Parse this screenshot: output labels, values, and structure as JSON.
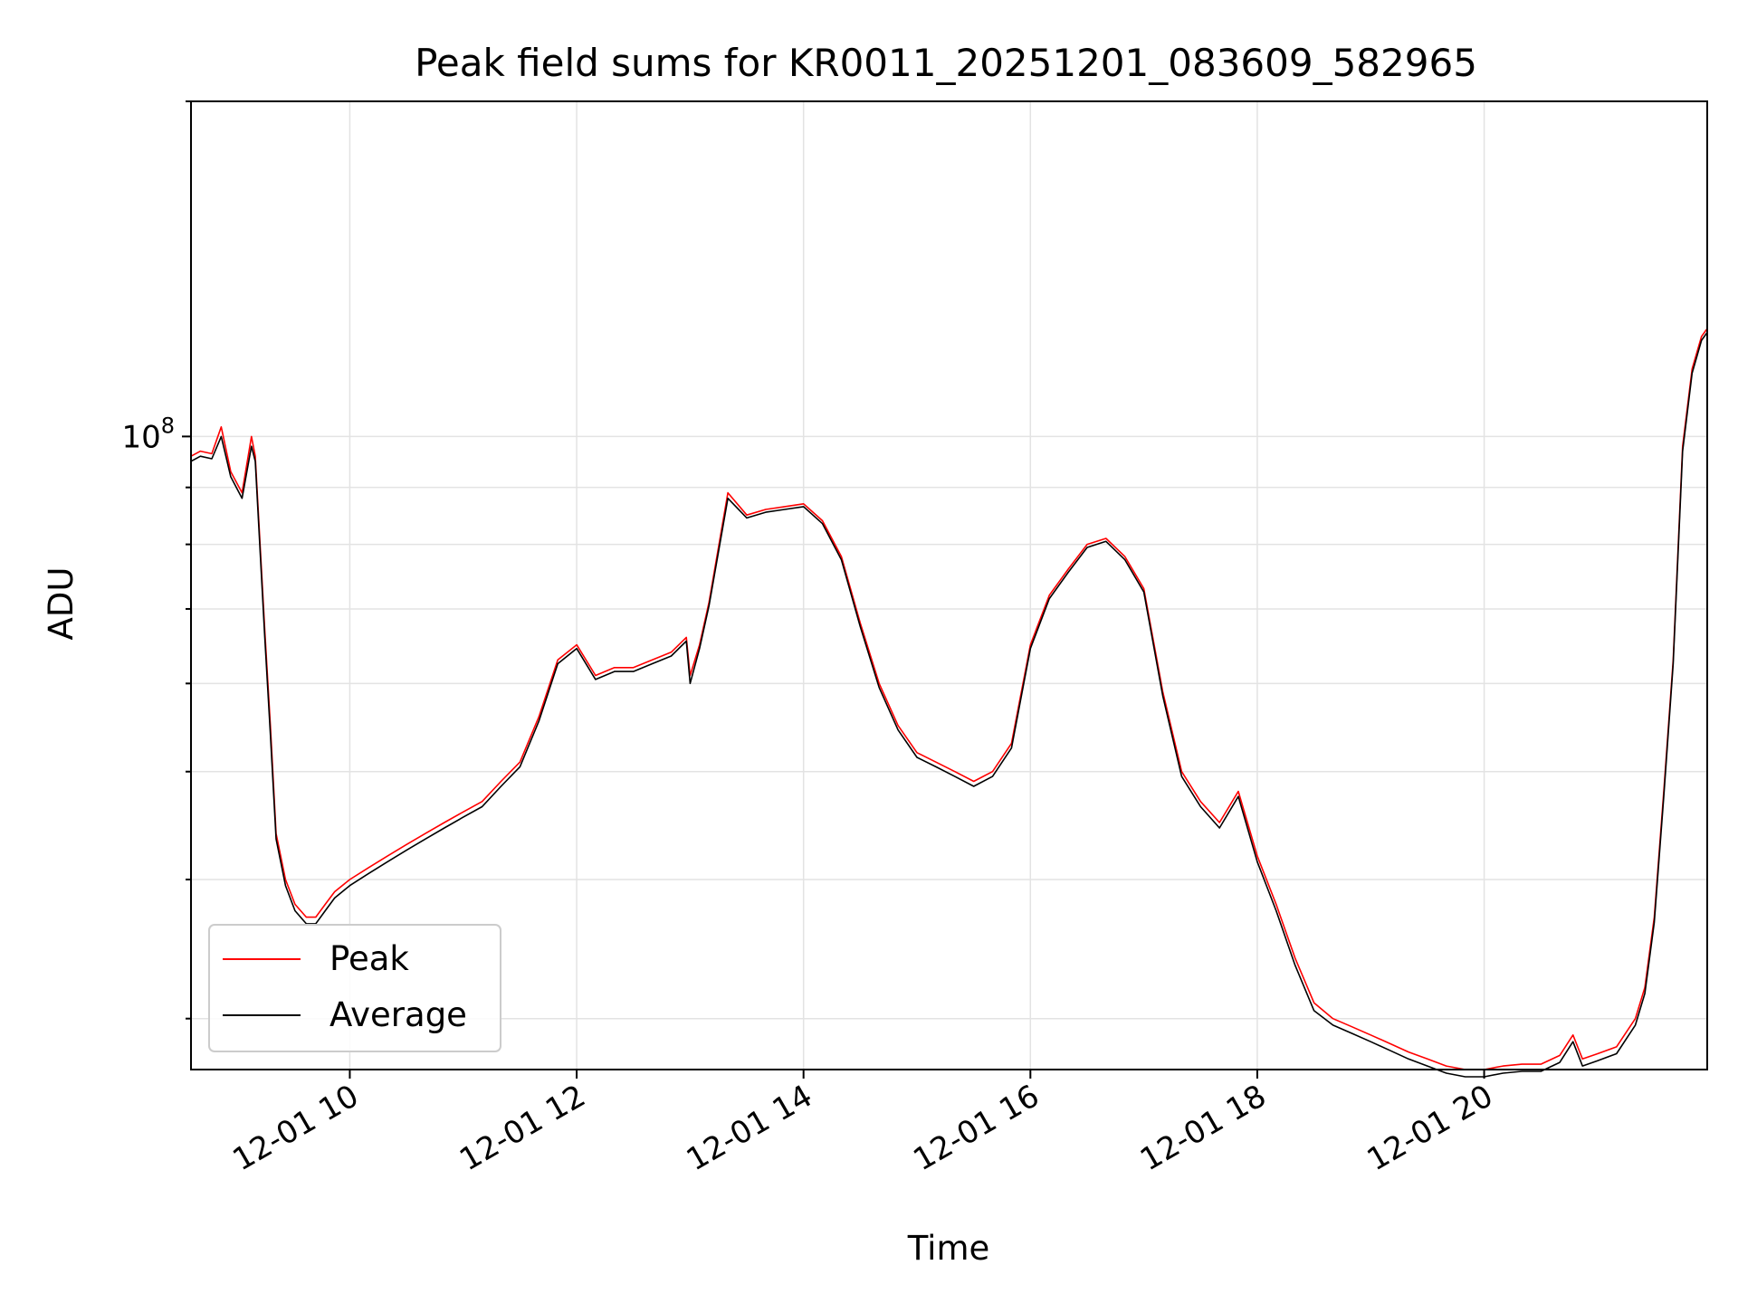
{
  "chart_data": {
    "type": "line",
    "title": "Peak field sums for KR0011_20251201_083609_582965",
    "xlabel": "Time",
    "ylabel": "ADU",
    "yscale": "log",
    "grid": true,
    "legend_position": "lower-left",
    "x_ticks": [
      "12-01 10",
      "12-01 12",
      "12-01 14",
      "12-01 16",
      "12-01 18",
      "12-01 20"
    ],
    "y_tick_labels": [
      {
        "base": "10",
        "exp": "8",
        "value": 100000000
      }
    ],
    "xlim": [
      "2025-12-01 08:36",
      "2025-12-01 21:58"
    ],
    "ylim": [
      27000000,
      200000000
    ],
    "series": [
      {
        "name": "Peak",
        "color": "#ff0000",
        "x": [
          "08:36",
          "08:41",
          "08:47",
          "08:52",
          "08:57",
          "09:03",
          "09:08",
          "09:10",
          "09:15",
          "09:18",
          "09:21",
          "09:26",
          "09:31",
          "09:37",
          "09:42",
          "09:47",
          "09:52",
          "10:00",
          "10:10",
          "10:20",
          "10:30",
          "10:40",
          "10:50",
          "11:00",
          "11:10",
          "11:20",
          "11:30",
          "11:40",
          "11:50",
          "12:00",
          "12:10",
          "12:20",
          "12:30",
          "12:40",
          "12:50",
          "12:58",
          "13:00",
          "13:05",
          "13:10",
          "13:20",
          "13:30",
          "13:40",
          "13:50",
          "14:00",
          "14:10",
          "14:20",
          "14:30",
          "14:40",
          "14:50",
          "15:00",
          "15:10",
          "15:20",
          "15:30",
          "15:40",
          "15:50",
          "16:00",
          "16:10",
          "16:20",
          "16:30",
          "16:40",
          "16:50",
          "17:00",
          "17:10",
          "17:20",
          "17:30",
          "17:40",
          "17:50",
          "18:00",
          "18:10",
          "18:20",
          "18:30",
          "18:40",
          "18:50",
          "19:00",
          "19:10",
          "19:20",
          "19:30",
          "19:40",
          "19:50",
          "20:00",
          "20:10",
          "20:20",
          "20:30",
          "20:40",
          "20:47",
          "20:52",
          "21:00",
          "21:10",
          "21:20",
          "21:25",
          "21:30",
          "21:35",
          "21:40",
          "21:45",
          "21:50",
          "21:55",
          "21:58"
        ],
        "y": [
          96000000,
          97000000,
          96500000,
          102000000,
          93000000,
          89000000,
          100000000,
          96000000,
          67000000,
          55000000,
          44000000,
          40000000,
          38000000,
          37000000,
          37000000,
          38000000,
          39000000,
          40000000,
          41000000,
          42000000,
          43000000,
          44000000,
          45000000,
          46000000,
          47000000,
          49000000,
          51000000,
          56000000,
          63000000,
          65000000,
          61000000,
          62000000,
          62000000,
          63000000,
          64000000,
          66000000,
          61000000,
          65000000,
          71000000,
          89000000,
          85000000,
          86000000,
          86500000,
          87000000,
          84000000,
          78000000,
          68000000,
          60000000,
          55000000,
          52000000,
          51000000,
          50000000,
          49000000,
          50000000,
          53000000,
          65000000,
          72000000,
          76000000,
          80000000,
          81000000,
          78000000,
          73000000,
          59000000,
          50000000,
          47000000,
          45000000,
          48000000,
          42000000,
          38000000,
          34000000,
          31000000,
          30000000,
          29500000,
          29000000,
          28500000,
          28000000,
          27600000,
          27200000,
          27000000,
          27000000,
          27200000,
          27300000,
          27300000,
          27800000,
          29000000,
          27600000,
          27900000,
          28300000,
          30000000,
          32000000,
          37000000,
          48000000,
          63000000,
          98000000,
          115000000,
          123000000,
          125000000
        ]
      },
      {
        "name": "Average",
        "color": "#000000",
        "x": [
          "08:36",
          "08:41",
          "08:47",
          "08:52",
          "08:57",
          "09:03",
          "09:08",
          "09:10",
          "09:15",
          "09:18",
          "09:21",
          "09:26",
          "09:31",
          "09:37",
          "09:42",
          "09:47",
          "09:52",
          "10:00",
          "10:10",
          "10:20",
          "10:30",
          "10:40",
          "10:50",
          "11:00",
          "11:10",
          "11:20",
          "11:30",
          "11:40",
          "11:50",
          "12:00",
          "12:10",
          "12:20",
          "12:30",
          "12:40",
          "12:50",
          "12:58",
          "13:00",
          "13:05",
          "13:10",
          "13:20",
          "13:30",
          "13:40",
          "13:50",
          "14:00",
          "14:10",
          "14:20",
          "14:30",
          "14:40",
          "14:50",
          "15:00",
          "15:10",
          "15:20",
          "15:30",
          "15:40",
          "15:50",
          "16:00",
          "16:10",
          "16:20",
          "16:30",
          "16:40",
          "16:50",
          "17:00",
          "17:10",
          "17:20",
          "17:30",
          "17:40",
          "17:50",
          "18:00",
          "18:10",
          "18:20",
          "18:30",
          "18:40",
          "18:50",
          "19:00",
          "19:10",
          "19:20",
          "19:30",
          "19:40",
          "19:50",
          "20:00",
          "20:10",
          "20:20",
          "20:30",
          "20:40",
          "20:47",
          "20:52",
          "21:00",
          "21:10",
          "21:20",
          "21:25",
          "21:30",
          "21:35",
          "21:40",
          "21:45",
          "21:50",
          "21:55",
          "21:58"
        ],
        "y": [
          95000000,
          96000000,
          95500000,
          100000000,
          92000000,
          88000000,
          98000000,
          95000000,
          66000000,
          54000000,
          43500000,
          39500000,
          37500000,
          36500000,
          36500000,
          37500000,
          38500000,
          39500000,
          40500000,
          41500000,
          42500000,
          43500000,
          44500000,
          45500000,
          46500000,
          48500000,
          50500000,
          55500000,
          62500000,
          64500000,
          60500000,
          61500000,
          61500000,
          62500000,
          63500000,
          65500000,
          60000000,
          64500000,
          70500000,
          88000000,
          84500000,
          85500000,
          86000000,
          86500000,
          83500000,
          77500000,
          67500000,
          59500000,
          54500000,
          51500000,
          50500000,
          49500000,
          48500000,
          49500000,
          52500000,
          64500000,
          71500000,
          75500000,
          79500000,
          80500000,
          77500000,
          72500000,
          58500000,
          49500000,
          46500000,
          44500000,
          47500000,
          41500000,
          37500000,
          33500000,
          30500000,
          29600000,
          29100000,
          28600000,
          28100000,
          27600000,
          27200000,
          26800000,
          26600000,
          26600000,
          26800000,
          26900000,
          26900000,
          27400000,
          28600000,
          27200000,
          27500000,
          27900000,
          29600000,
          31600000,
          36600000,
          47500000,
          62500000,
          97000000,
          114000000,
          122000000,
          124000000
        ]
      }
    ]
  }
}
